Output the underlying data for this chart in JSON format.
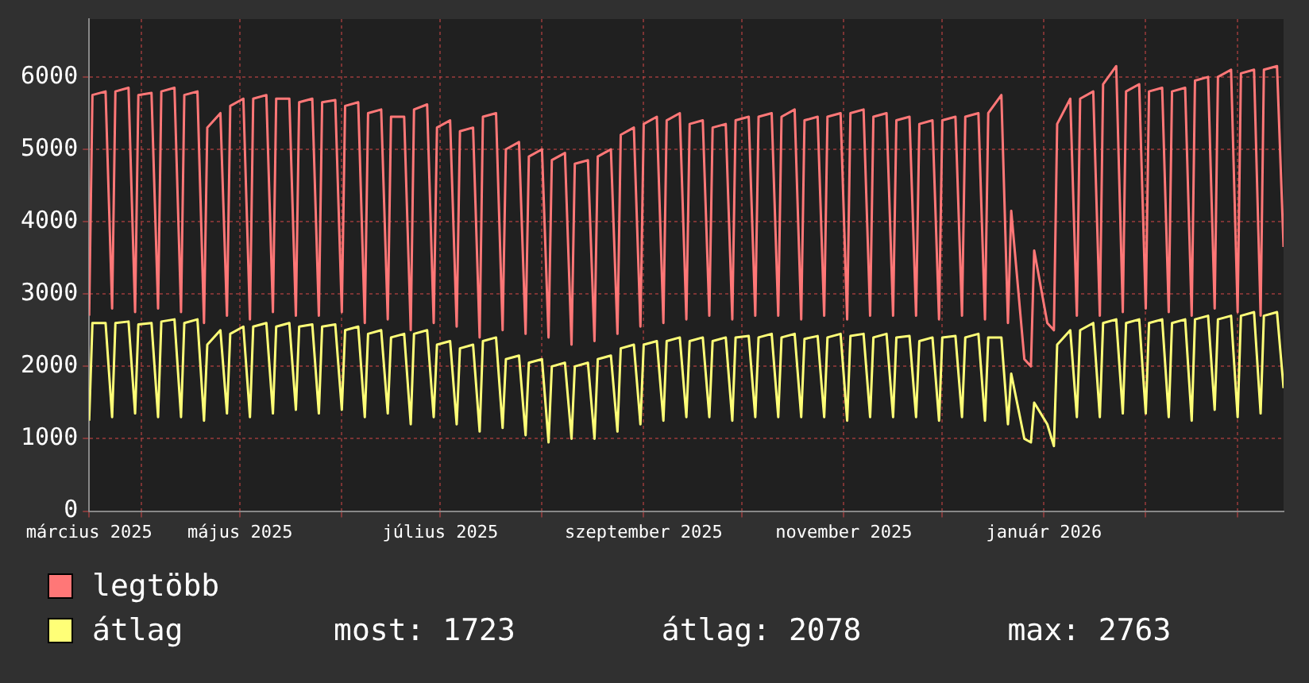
{
  "chart_data": {
    "type": "line",
    "x": [
      "2025-03-16",
      "2025-03-17",
      "2025-03-21",
      "2025-03-23",
      "2025-03-24",
      "2025-03-28",
      "2025-03-30",
      "2025-03-31",
      "2025-04-04",
      "2025-04-06",
      "2025-04-07",
      "2025-04-11",
      "2025-04-13",
      "2025-04-14",
      "2025-04-18",
      "2025-04-20",
      "2025-04-21",
      "2025-04-25",
      "2025-04-27",
      "2025-04-28",
      "2025-05-02",
      "2025-05-04",
      "2025-05-05",
      "2025-05-09",
      "2025-05-11",
      "2025-05-12",
      "2025-05-16",
      "2025-05-18",
      "2025-05-19",
      "2025-05-23",
      "2025-05-25",
      "2025-05-26",
      "2025-05-30",
      "2025-06-01",
      "2025-06-02",
      "2025-06-06",
      "2025-06-08",
      "2025-06-09",
      "2025-06-13",
      "2025-06-15",
      "2025-06-16",
      "2025-06-20",
      "2025-06-22",
      "2025-06-23",
      "2025-06-27",
      "2025-06-29",
      "2025-06-30",
      "2025-07-04",
      "2025-07-06",
      "2025-07-07",
      "2025-07-11",
      "2025-07-13",
      "2025-07-14",
      "2025-07-18",
      "2025-07-20",
      "2025-07-21",
      "2025-07-25",
      "2025-07-27",
      "2025-07-28",
      "2025-08-01",
      "2025-08-03",
      "2025-08-04",
      "2025-08-08",
      "2025-08-10",
      "2025-08-11",
      "2025-08-15",
      "2025-08-17",
      "2025-08-18",
      "2025-08-22",
      "2025-08-24",
      "2025-08-25",
      "2025-08-29",
      "2025-08-31",
      "2025-09-01",
      "2025-09-05",
      "2025-09-07",
      "2025-09-08",
      "2025-09-12",
      "2025-09-14",
      "2025-09-15",
      "2025-09-19",
      "2025-09-21",
      "2025-09-22",
      "2025-09-26",
      "2025-09-28",
      "2025-09-29",
      "2025-10-03",
      "2025-10-05",
      "2025-10-06",
      "2025-10-10",
      "2025-10-12",
      "2025-10-13",
      "2025-10-17",
      "2025-10-19",
      "2025-10-20",
      "2025-10-24",
      "2025-10-26",
      "2025-10-27",
      "2025-10-31",
      "2025-11-02",
      "2025-11-03",
      "2025-11-07",
      "2025-11-09",
      "2025-11-10",
      "2025-11-14",
      "2025-11-16",
      "2025-11-17",
      "2025-11-21",
      "2025-11-23",
      "2025-11-24",
      "2025-11-28",
      "2025-11-30",
      "2025-12-01",
      "2025-12-05",
      "2025-12-07",
      "2025-12-08",
      "2025-12-12",
      "2025-12-14",
      "2025-12-15",
      "2025-12-19",
      "2025-12-21",
      "2025-12-22",
      "2025-12-26",
      "2025-12-28",
      "2025-12-29",
      "2026-01-02",
      "2026-01-04",
      "2026-01-05",
      "2026-01-09",
      "2026-01-11",
      "2026-01-12",
      "2026-01-16",
      "2026-01-18",
      "2026-01-19",
      "2026-01-23",
      "2026-01-25",
      "2026-01-26",
      "2026-01-30",
      "2026-02-01",
      "2026-02-02",
      "2026-02-06",
      "2026-02-08",
      "2026-02-09",
      "2026-02-13",
      "2026-02-15",
      "2026-02-16",
      "2026-02-20",
      "2026-02-22",
      "2026-02-23",
      "2026-02-27",
      "2026-03-01",
      "2026-03-02",
      "2026-03-06",
      "2026-03-08",
      "2026-03-09",
      "2026-03-13",
      "2026-03-15"
    ],
    "series": [
      {
        "name": "legtöbb",
        "color": "#ff7777",
        "values": [
          2700,
          5750,
          5800,
          2800,
          5800,
          5850,
          2750,
          5750,
          5780,
          2800,
          5800,
          5850,
          2750,
          5750,
          5800,
          2600,
          5300,
          5500,
          2700,
          5600,
          5700,
          2650,
          5700,
          5750,
          2750,
          5700,
          5700,
          2700,
          5650,
          5700,
          2700,
          5650,
          5680,
          2750,
          5600,
          5650,
          2600,
          5500,
          5550,
          2650,
          5450,
          5450,
          2500,
          5550,
          5620,
          2600,
          5300,
          5400,
          2550,
          5250,
          5300,
          2400,
          5450,
          5500,
          2500,
          5000,
          5100,
          2450,
          4900,
          5000,
          2400,
          4850,
          4950,
          2300,
          4800,
          4850,
          2350,
          4900,
          5000,
          2450,
          5200,
          5300,
          2550,
          5350,
          5450,
          2600,
          5400,
          5500,
          2650,
          5350,
          5400,
          2700,
          5300,
          5350,
          2650,
          5400,
          5450,
          2700,
          5450,
          5500,
          2700,
          5450,
          5550,
          2650,
          5400,
          5450,
          2700,
          5450,
          5500,
          2650,
          5500,
          5550,
          2700,
          5450,
          5500,
          2700,
          5400,
          5450,
          2700,
          5350,
          5400,
          2650,
          5400,
          5450,
          2700,
          5450,
          5500,
          2650,
          5500,
          5750,
          2600,
          4150,
          2100,
          2000,
          3600,
          2600,
          2500,
          5350,
          5700,
          2700,
          5700,
          5800,
          2700,
          5900,
          6150,
          2750,
          5800,
          5900,
          2800,
          5800,
          5850,
          2750,
          5800,
          5850,
          2700,
          5950,
          6000,
          2800,
          6000,
          6100,
          2750,
          6050,
          6100,
          2700,
          6100,
          6150,
          3650
        ]
      },
      {
        "name": "átlag",
        "color": "#ffff77",
        "values": [
          1250,
          2600,
          2600,
          1300,
          2600,
          2620,
          1350,
          2580,
          2600,
          1300,
          2620,
          2650,
          1300,
          2600,
          2650,
          1250,
          2300,
          2500,
          1350,
          2450,
          2550,
          1300,
          2550,
          2600,
          1350,
          2550,
          2600,
          1400,
          2550,
          2580,
          1350,
          2550,
          2580,
          1400,
          2500,
          2550,
          1300,
          2450,
          2500,
          1350,
          2400,
          2450,
          1200,
          2450,
          2500,
          1300,
          2300,
          2350,
          1200,
          2250,
          2300,
          1100,
          2350,
          2400,
          1150,
          2100,
          2150,
          1050,
          2050,
          2100,
          950,
          2000,
          2050,
          1000,
          2000,
          2050,
          1000,
          2100,
          2150,
          1100,
          2250,
          2300,
          1200,
          2300,
          2350,
          1250,
          2350,
          2400,
          1300,
          2350,
          2400,
          1300,
          2350,
          2400,
          1250,
          2400,
          2420,
          1300,
          2400,
          2450,
          1300,
          2400,
          2450,
          1300,
          2380,
          2420,
          1300,
          2400,
          2450,
          1250,
          2420,
          2450,
          1300,
          2400,
          2450,
          1300,
          2400,
          2420,
          1300,
          2350,
          2400,
          1250,
          2400,
          2420,
          1300,
          2400,
          2450,
          1250,
          2400,
          2400,
          1200,
          1900,
          1000,
          950,
          1500,
          1200,
          900,
          2300,
          2500,
          1300,
          2500,
          2600,
          1300,
          2600,
          2650,
          1350,
          2600,
          2650,
          1350,
          2600,
          2650,
          1300,
          2600,
          2650,
          1250,
          2650,
          2700,
          1400,
          2650,
          2700,
          1300,
          2700,
          2750,
          1350,
          2700,
          2750,
          1700
        ]
      }
    ],
    "xlim": [
      "2025-03-16",
      "2026-03-15"
    ],
    "xticks": [
      {
        "value": "2025-03-16",
        "label": "március 2025"
      },
      {
        "value": "2025-04-01",
        "label": null
      },
      {
        "value": "2025-05-01",
        "label": "május 2025"
      },
      {
        "value": "2025-06-01",
        "label": null
      },
      {
        "value": "2025-07-01",
        "label": "július 2025"
      },
      {
        "value": "2025-08-01",
        "label": null
      },
      {
        "value": "2025-09-01",
        "label": "szeptember 2025"
      },
      {
        "value": "2025-10-01",
        "label": null
      },
      {
        "value": "2025-11-01",
        "label": "november 2025"
      },
      {
        "value": "2025-12-01",
        "label": null
      },
      {
        "value": "2026-01-01",
        "label": "január 2026"
      },
      {
        "value": "2026-02-01",
        "label": null
      },
      {
        "value": "2026-03-01",
        "label": null
      }
    ],
    "ylim": [
      0,
      6800
    ],
    "yticks": [
      0,
      1000,
      2000,
      3000,
      4000,
      5000,
      6000
    ],
    "grid": true,
    "legend": "bottom left",
    "annotations": [
      "most: 1723",
      "átlag: 2078",
      "max: 2763"
    ]
  }
}
